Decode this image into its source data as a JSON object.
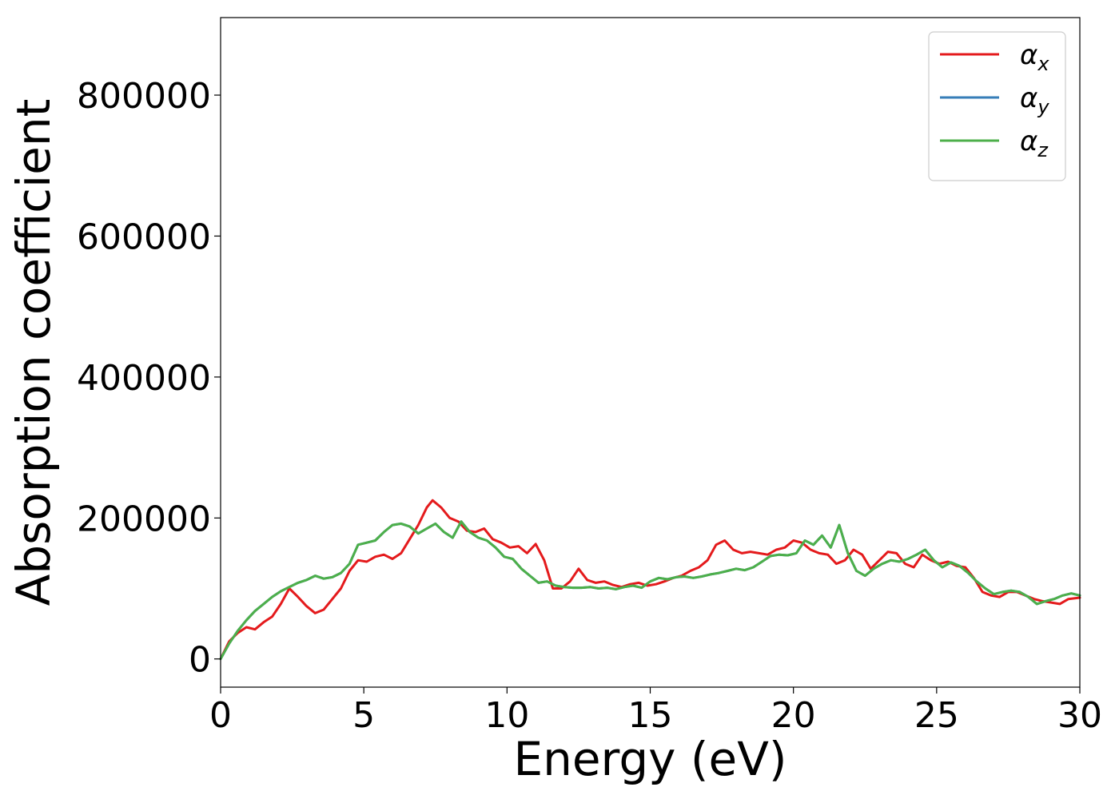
{
  "chart_data": {
    "type": "line",
    "xlabel": "Energy (eV)",
    "ylabel": "Absorption coefficient",
    "xlim": [
      0,
      30
    ],
    "ylim": [
      -40000,
      910000
    ],
    "xticks": [
      0,
      5,
      10,
      15,
      20,
      25,
      30
    ],
    "xtick_labels": [
      "0",
      "5",
      "10",
      "15",
      "20",
      "25",
      "30"
    ],
    "yticks": [
      0,
      200000,
      400000,
      600000,
      800000
    ],
    "ytick_labels": [
      "0",
      "200000",
      "400000",
      "600000",
      "800000"
    ],
    "grid": false,
    "legend_position": "top-right",
    "series": [
      {
        "name": "α",
        "subscript": "x",
        "color": "#e41a1c",
        "x": [
          0,
          0.3,
          0.6,
          0.9,
          1.2,
          1.5,
          1.8,
          2.1,
          2.4,
          2.7,
          3.0,
          3.3,
          3.6,
          3.9,
          4.2,
          4.5,
          4.8,
          5.1,
          5.4,
          5.7,
          6.0,
          6.3,
          6.6,
          6.9,
          7.2,
          7.4,
          7.7,
          8.0,
          8.3,
          8.6,
          8.9,
          9.2,
          9.5,
          9.8,
          10.1,
          10.4,
          10.7,
          11.0,
          11.3,
          11.6,
          11.9,
          12.2,
          12.5,
          12.8,
          13.1,
          13.4,
          13.7,
          14.0,
          14.3,
          14.6,
          14.9,
          15.2,
          15.5,
          15.8,
          16.1,
          16.4,
          16.7,
          17.0,
          17.3,
          17.6,
          17.9,
          18.2,
          18.5,
          18.8,
          19.1,
          19.4,
          19.7,
          20.0,
          20.3,
          20.6,
          20.9,
          21.2,
          21.5,
          21.8,
          22.1,
          22.4,
          22.7,
          23.0,
          23.3,
          23.6,
          23.9,
          24.2,
          24.5,
          24.8,
          25.1,
          25.4,
          25.7,
          26.0,
          26.3,
          26.6,
          26.9,
          27.2,
          27.5,
          27.8,
          28.1,
          28.4,
          28.7,
          29.0,
          29.3,
          29.6,
          30.0
        ],
        "y": [
          0,
          25000,
          37000,
          45000,
          42000,
          52000,
          60000,
          78000,
          100000,
          88000,
          75000,
          65000,
          70000,
          85000,
          100000,
          125000,
          140000,
          138000,
          145000,
          148000,
          142000,
          150000,
          170000,
          190000,
          215000,
          225000,
          215000,
          200000,
          195000,
          182000,
          180000,
          185000,
          170000,
          165000,
          158000,
          160000,
          150000,
          163000,
          140000,
          100000,
          100000,
          110000,
          128000,
          112000,
          108000,
          110000,
          105000,
          102000,
          106000,
          108000,
          104000,
          106000,
          110000,
          115000,
          118000,
          125000,
          130000,
          140000,
          162000,
          168000,
          155000,
          150000,
          152000,
          150000,
          148000,
          155000,
          158000,
          168000,
          165000,
          155000,
          150000,
          148000,
          135000,
          140000,
          155000,
          148000,
          128000,
          140000,
          152000,
          150000,
          135000,
          130000,
          148000,
          140000,
          135000,
          138000,
          132000,
          130000,
          115000,
          95000,
          90000,
          88000,
          95000,
          95000,
          90000,
          85000,
          82000,
          80000,
          78000,
          85000,
          87000
        ]
      },
      {
        "name": "α",
        "subscript": "y",
        "color": "#377eb8",
        "x": [
          0,
          0.3,
          0.6,
          0.9,
          1.2,
          1.5,
          1.8,
          2.1,
          2.4,
          2.7,
          3.0,
          3.3,
          3.6,
          3.9,
          4.2,
          4.5,
          4.8,
          5.1,
          5.4,
          5.7,
          6.0,
          6.3,
          6.6,
          6.9,
          7.2,
          7.5,
          7.8,
          8.1,
          8.4,
          8.7,
          9.0,
          9.3,
          9.6,
          9.9,
          10.2,
          10.5,
          10.8,
          11.1,
          11.4,
          11.7,
          12.0,
          12.3,
          12.6,
          12.9,
          13.2,
          13.5,
          13.8,
          14.1,
          14.4,
          14.7,
          15.0,
          15.3,
          15.6,
          15.9,
          16.2,
          16.5,
          16.8,
          17.1,
          17.4,
          17.7,
          18.0,
          18.3,
          18.6,
          18.9,
          19.2,
          19.5,
          19.8,
          20.1,
          20.4,
          20.7,
          21.0,
          21.3,
          21.6,
          21.9,
          22.2,
          22.5,
          22.8,
          23.1,
          23.4,
          23.7,
          24.0,
          24.3,
          24.6,
          24.9,
          25.2,
          25.5,
          25.8,
          26.1,
          26.4,
          26.7,
          27.0,
          27.3,
          27.6,
          27.9,
          28.2,
          28.5,
          28.8,
          29.1,
          29.4,
          29.7,
          30.0
        ],
        "y": [
          0,
          22000,
          40000,
          55000,
          68000,
          78000,
          88000,
          96000,
          102000,
          108000,
          112000,
          118000,
          114000,
          116000,
          122000,
          135000,
          162000,
          165000,
          168000,
          180000,
          190000,
          192000,
          188000,
          178000,
          185000,
          192000,
          180000,
          172000,
          195000,
          180000,
          172000,
          168000,
          158000,
          145000,
          142000,
          128000,
          118000,
          108000,
          110000,
          104000,
          102000,
          101000,
          101000,
          102000,
          100000,
          101000,
          99000,
          102000,
          104000,
          101000,
          110000,
          115000,
          113000,
          116000,
          117000,
          115000,
          117000,
          120000,
          122000,
          125000,
          128000,
          126000,
          130000,
          138000,
          146000,
          148000,
          147000,
          150000,
          168000,
          162000,
          175000,
          158000,
          190000,
          150000,
          125000,
          118000,
          128000,
          135000,
          140000,
          138000,
          142000,
          148000,
          155000,
          140000,
          130000,
          137000,
          132000,
          122000,
          110000,
          100000,
          92000,
          95000,
          97000,
          95000,
          88000,
          78000,
          82000,
          85000,
          90000,
          93000,
          90000
        ]
      },
      {
        "name": "α",
        "subscript": "z",
        "color": "#4daf4a",
        "x": [
          0,
          0.3,
          0.6,
          0.9,
          1.2,
          1.5,
          1.8,
          2.1,
          2.4,
          2.7,
          3.0,
          3.3,
          3.6,
          3.9,
          4.2,
          4.5,
          4.8,
          5.1,
          5.4,
          5.7,
          6.0,
          6.3,
          6.6,
          6.9,
          7.2,
          7.5,
          7.8,
          8.1,
          8.4,
          8.7,
          9.0,
          9.3,
          9.6,
          9.9,
          10.2,
          10.5,
          10.8,
          11.1,
          11.4,
          11.7,
          12.0,
          12.3,
          12.6,
          12.9,
          13.2,
          13.5,
          13.8,
          14.1,
          14.4,
          14.7,
          15.0,
          15.3,
          15.6,
          15.9,
          16.2,
          16.5,
          16.8,
          17.1,
          17.4,
          17.7,
          18.0,
          18.3,
          18.6,
          18.9,
          19.2,
          19.5,
          19.8,
          20.1,
          20.4,
          20.7,
          21.0,
          21.3,
          21.6,
          21.9,
          22.2,
          22.5,
          22.8,
          23.1,
          23.4,
          23.7,
          24.0,
          24.3,
          24.6,
          24.9,
          25.2,
          25.5,
          25.8,
          26.1,
          26.4,
          26.7,
          27.0,
          27.3,
          27.6,
          27.9,
          28.2,
          28.5,
          28.8,
          29.1,
          29.4,
          29.7,
          30.0
        ],
        "y": [
          0,
          22000,
          40000,
          55000,
          68000,
          78000,
          88000,
          96000,
          102000,
          108000,
          112000,
          118000,
          114000,
          116000,
          122000,
          135000,
          162000,
          165000,
          168000,
          180000,
          190000,
          192000,
          188000,
          178000,
          185000,
          192000,
          180000,
          172000,
          195000,
          180000,
          172000,
          168000,
          158000,
          145000,
          142000,
          128000,
          118000,
          108000,
          110000,
          104000,
          102000,
          101000,
          101000,
          102000,
          100000,
          101000,
          99000,
          102000,
          104000,
          101000,
          110000,
          115000,
          113000,
          116000,
          117000,
          115000,
          117000,
          120000,
          122000,
          125000,
          128000,
          126000,
          130000,
          138000,
          146000,
          148000,
          147000,
          150000,
          168000,
          162000,
          175000,
          158000,
          190000,
          150000,
          125000,
          118000,
          128000,
          135000,
          140000,
          138000,
          142000,
          148000,
          155000,
          140000,
          130000,
          137000,
          132000,
          122000,
          110000,
          100000,
          92000,
          95000,
          97000,
          95000,
          88000,
          78000,
          82000,
          85000,
          90000,
          93000,
          90000
        ]
      }
    ]
  }
}
